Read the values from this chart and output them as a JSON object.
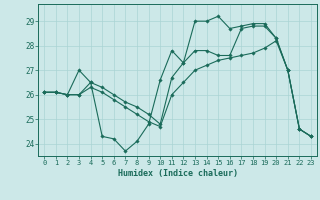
{
  "xlabel": "Humidex (Indice chaleur)",
  "bg_color": "#cce8e8",
  "line_color": "#1a6b5a",
  "grid_color": "#aad4d4",
  "xlim": [
    -0.5,
    23.5
  ],
  "ylim": [
    23.5,
    29.7
  ],
  "xticks": [
    0,
    1,
    2,
    3,
    4,
    5,
    6,
    7,
    8,
    9,
    10,
    11,
    12,
    13,
    14,
    15,
    16,
    17,
    18,
    19,
    20,
    21,
    22,
    23
  ],
  "yticks": [
    24,
    25,
    26,
    27,
    28,
    29
  ],
  "lines": [
    {
      "x": [
        0,
        1,
        2,
        3,
        4,
        5,
        6,
        7,
        8,
        9,
        10,
        11,
        12,
        13,
        14,
        15,
        16,
        17,
        18,
        19,
        20,
        21,
        22,
        23
      ],
      "y": [
        26.1,
        26.1,
        26.0,
        27.0,
        26.5,
        24.3,
        24.2,
        23.7,
        24.1,
        24.8,
        26.6,
        27.8,
        27.3,
        29.0,
        29.0,
        29.2,
        28.7,
        28.8,
        28.9,
        28.9,
        28.3,
        27.0,
        24.6,
        24.3
      ]
    },
    {
      "x": [
        0,
        1,
        2,
        3,
        4,
        5,
        6,
        7,
        8,
        9,
        10,
        11,
        12,
        13,
        14,
        15,
        16,
        17,
        18,
        19,
        20,
        21,
        22,
        23
      ],
      "y": [
        26.1,
        26.1,
        26.0,
        26.0,
        26.5,
        26.3,
        26.0,
        25.7,
        25.5,
        25.2,
        24.8,
        26.7,
        27.3,
        27.8,
        27.8,
        27.6,
        27.6,
        28.7,
        28.8,
        28.8,
        28.3,
        27.0,
        24.6,
        24.3
      ]
    },
    {
      "x": [
        0,
        1,
        2,
        3,
        4,
        5,
        6,
        7,
        8,
        9,
        10,
        11,
        12,
        13,
        14,
        15,
        16,
        17,
        18,
        19,
        20,
        21,
        22,
        23
      ],
      "y": [
        26.1,
        26.1,
        26.0,
        26.0,
        26.3,
        26.1,
        25.8,
        25.5,
        25.2,
        24.9,
        24.7,
        26.0,
        26.5,
        27.0,
        27.2,
        27.4,
        27.5,
        27.6,
        27.7,
        27.9,
        28.2,
        27.0,
        24.6,
        24.3
      ]
    }
  ]
}
